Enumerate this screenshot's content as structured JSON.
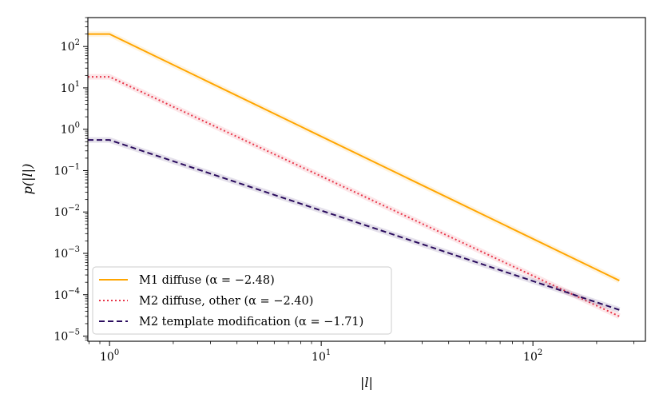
{
  "chart_data": {
    "type": "line",
    "title": "",
    "xlabel": "|l|",
    "ylabel": "p(|l|)",
    "xscale": "log",
    "yscale": "log",
    "xlim": [
      0.79,
      340
    ],
    "ylim": [
      7.5e-06,
      500
    ],
    "x_ticks": [
      {
        "value": 1,
        "base": "10",
        "exp": "0"
      },
      {
        "value": 10,
        "base": "10",
        "exp": "1"
      },
      {
        "value": 100,
        "base": "10",
        "exp": "2"
      }
    ],
    "y_ticks": [
      {
        "value": 100,
        "base": "10",
        "exp": "2"
      },
      {
        "value": 10,
        "base": "10",
        "exp": "1"
      },
      {
        "value": 1,
        "base": "10",
        "exp": "0"
      },
      {
        "value": 0.1,
        "base": "10",
        "exp": "−1"
      },
      {
        "value": 0.01,
        "base": "10",
        "exp": "−2"
      },
      {
        "value": 0.001,
        "base": "10",
        "exp": "−3"
      },
      {
        "value": 0.0001,
        "base": "10",
        "exp": "−4"
      },
      {
        "value": 1e-05,
        "base": "10",
        "exp": "−5"
      }
    ],
    "legend_position": "bottom-left",
    "series": [
      {
        "name": "M1 diffuse (α = −2.48)",
        "color": "#FFA500",
        "style": "solid",
        "x": [
          0.79,
          1,
          256
        ],
        "y": [
          200,
          200,
          0.00022
        ]
      },
      {
        "name": "M2 diffuse, other (α = −2.40)",
        "color": "#E8364A",
        "style": "dotted",
        "x": [
          0.79,
          1,
          256
        ],
        "y": [
          18.5,
          18.5,
          3e-05
        ]
      },
      {
        "name": "M2 template modification (α = −1.71)",
        "color": "#2A0C5E",
        "style": "dashed",
        "x": [
          0.79,
          1,
          256
        ],
        "y": [
          0.55,
          0.55,
          4.3e-05
        ]
      }
    ]
  }
}
